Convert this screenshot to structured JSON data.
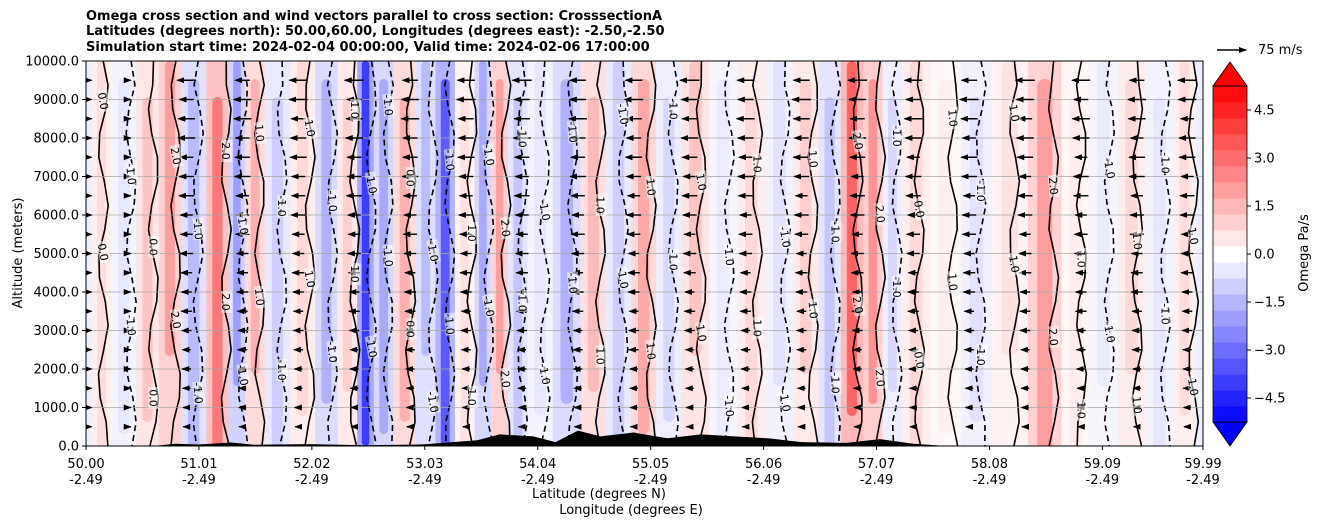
{
  "title_lines": [
    "Omega cross section and wind vectors parallel to cross section: CrosssectionA",
    "Latitudes (degrees north): 50.00,60.00, Longitudes (degrees east): -2.50,-2.50",
    "Simulation start time: 2024-02-04 00:00:00, Valid time: 2024-02-06 17:00:00"
  ],
  "chart_data": {
    "type": "heatmap",
    "ylabel": "Altitude (meters)",
    "xlabel_line1": "Latitude (degrees N)",
    "xlabel_line2": "Longitude (degrees E)",
    "ylim": [
      0,
      10000
    ],
    "xlim": [
      50.0,
      59.99
    ],
    "y_ticks": [
      "0.0",
      "1000.0",
      "2000.0",
      "3000.0",
      "4000.0",
      "5000.0",
      "6000.0",
      "7000.0",
      "8000.0",
      "9000.0",
      "10000.0"
    ],
    "x_ticks": [
      {
        "lat": "50.00",
        "lon": "-2.49"
      },
      {
        "lat": "51.01",
        "lon": "-2.49"
      },
      {
        "lat": "52.02",
        "lon": "-2.49"
      },
      {
        "lat": "53.03",
        "lon": "-2.49"
      },
      {
        "lat": "54.04",
        "lon": "-2.49"
      },
      {
        "lat": "55.05",
        "lon": "-2.49"
      },
      {
        "lat": "56.06",
        "lon": "-2.49"
      },
      {
        "lat": "57.07",
        "lon": "-2.49"
      },
      {
        "lat": "58.08",
        "lon": "-2.49"
      },
      {
        "lat": "59.09",
        "lon": "-2.49"
      },
      {
        "lat": "59.99",
        "lon": "-2.49"
      }
    ],
    "grid": "horizontal",
    "colorbar": {
      "label": "Omega Pa/s",
      "range": [
        -5.25,
        5.25
      ],
      "ticks": [
        "−4.5",
        "−3.0",
        "−1.5",
        "0.0",
        "1.5",
        "3.0",
        "4.5"
      ],
      "tick_values": [
        -4.5,
        -3.0,
        -1.5,
        0.0,
        1.5,
        3.0,
        4.5
      ],
      "extend": "both",
      "colormap": "bwr"
    },
    "vector_reference": "75 m/s",
    "contour_labels": [
      "-1.0",
      "0.0",
      "1.0",
      "2.0"
    ],
    "omega_bands": [
      {
        "lat": 50.1,
        "value": 0.7
      },
      {
        "lat": 50.35,
        "value": -0.5
      },
      {
        "lat": 50.55,
        "value": 1.2
      },
      {
        "lat": 50.75,
        "value": 2.0
      },
      {
        "lat": 50.95,
        "value": -1.4
      },
      {
        "lat": 51.2,
        "value": 2.8
      },
      {
        "lat": 51.35,
        "value": -2.0
      },
      {
        "lat": 51.5,
        "value": 1.6
      },
      {
        "lat": 51.7,
        "value": -1.0
      },
      {
        "lat": 51.95,
        "value": 0.8
      },
      {
        "lat": 52.15,
        "value": -1.6
      },
      {
        "lat": 52.35,
        "value": 1.0
      },
      {
        "lat": 52.5,
        "value": -4.0
      },
      {
        "lat": 52.65,
        "value": -1.8
      },
      {
        "lat": 52.85,
        "value": 1.6
      },
      {
        "lat": 53.05,
        "value": -1.4
      },
      {
        "lat": 53.2,
        "value": -3.4
      },
      {
        "lat": 53.4,
        "value": 0.6
      },
      {
        "lat": 53.55,
        "value": -1.8
      },
      {
        "lat": 53.7,
        "value": 2.0
      },
      {
        "lat": 53.85,
        "value": -1.2
      },
      {
        "lat": 54.05,
        "value": -0.5
      },
      {
        "lat": 54.3,
        "value": -1.6
      },
      {
        "lat": 54.55,
        "value": 1.4
      },
      {
        "lat": 54.75,
        "value": -1.0
      },
      {
        "lat": 55.0,
        "value": 1.8
      },
      {
        "lat": 55.2,
        "value": -0.8
      },
      {
        "lat": 55.45,
        "value": 1.2
      },
      {
        "lat": 55.7,
        "value": -0.4
      },
      {
        "lat": 55.95,
        "value": 0.8
      },
      {
        "lat": 56.2,
        "value": -0.6
      },
      {
        "lat": 56.45,
        "value": 1.0
      },
      {
        "lat": 56.65,
        "value": -1.2
      },
      {
        "lat": 56.85,
        "value": 3.2
      },
      {
        "lat": 57.05,
        "value": 2.2
      },
      {
        "lat": 57.2,
        "value": -0.8
      },
      {
        "lat": 57.4,
        "value": 0.8
      },
      {
        "lat": 57.7,
        "value": 0.3
      },
      {
        "lat": 57.95,
        "value": -0.6
      },
      {
        "lat": 58.25,
        "value": 0.6
      },
      {
        "lat": 58.6,
        "value": 2.0
      },
      {
        "lat": 58.85,
        "value": 0.4
      },
      {
        "lat": 59.1,
        "value": -0.4
      },
      {
        "lat": 59.35,
        "value": 0.8
      },
      {
        "lat": 59.6,
        "value": -0.5
      },
      {
        "lat": 59.85,
        "value": 0.7
      }
    ],
    "wind_vectors": [
      {
        "lat": 50.05,
        "dir": 0
      },
      {
        "lat": 50.4,
        "dir": 0
      },
      {
        "lat": 50.9,
        "dir": -1
      },
      {
        "lat": 51.4,
        "dir": -1
      },
      {
        "lat": 51.9,
        "dir": -1
      },
      {
        "lat": 52.4,
        "dir": -1
      },
      {
        "lat": 52.9,
        "dir": -1
      },
      {
        "lat": 53.4,
        "dir": -1
      },
      {
        "lat": 53.9,
        "dir": -1
      },
      {
        "lat": 54.4,
        "dir": -1
      },
      {
        "lat": 54.9,
        "dir": -1
      },
      {
        "lat": 55.4,
        "dir": -1
      },
      {
        "lat": 55.9,
        "dir": -1
      },
      {
        "lat": 56.4,
        "dir": -1
      },
      {
        "lat": 56.9,
        "dir": -1
      },
      {
        "lat": 57.4,
        "dir": -1
      },
      {
        "lat": 57.9,
        "dir": -1
      },
      {
        "lat": 58.4,
        "dir": -1
      },
      {
        "lat": 58.9,
        "dir": -1
      },
      {
        "lat": 59.4,
        "dir": -1
      },
      {
        "lat": 59.85,
        "dir": -1
      }
    ],
    "terrain": [
      {
        "lat": 50.0,
        "alt": 0
      },
      {
        "lat": 50.6,
        "alt": 0
      },
      {
        "lat": 50.8,
        "alt": 60
      },
      {
        "lat": 51.0,
        "alt": 40
      },
      {
        "lat": 51.3,
        "alt": 90
      },
      {
        "lat": 51.5,
        "alt": 30
      },
      {
        "lat": 52.0,
        "alt": 50
      },
      {
        "lat": 52.5,
        "alt": 20
      },
      {
        "lat": 53.0,
        "alt": 40
      },
      {
        "lat": 53.5,
        "alt": 150
      },
      {
        "lat": 53.7,
        "alt": 300
      },
      {
        "lat": 54.0,
        "alt": 250
      },
      {
        "lat": 54.2,
        "alt": 100
      },
      {
        "lat": 54.4,
        "alt": 400
      },
      {
        "lat": 54.6,
        "alt": 250
      },
      {
        "lat": 54.9,
        "alt": 350
      },
      {
        "lat": 55.2,
        "alt": 200
      },
      {
        "lat": 55.5,
        "alt": 300
      },
      {
        "lat": 55.8,
        "alt": 250
      },
      {
        "lat": 56.1,
        "alt": 200
      },
      {
        "lat": 56.4,
        "alt": 100
      },
      {
        "lat": 56.8,
        "alt": 80
      },
      {
        "lat": 57.1,
        "alt": 180
      },
      {
        "lat": 57.4,
        "alt": 60
      },
      {
        "lat": 57.7,
        "alt": 0
      },
      {
        "lat": 59.99,
        "alt": 0
      }
    ]
  }
}
